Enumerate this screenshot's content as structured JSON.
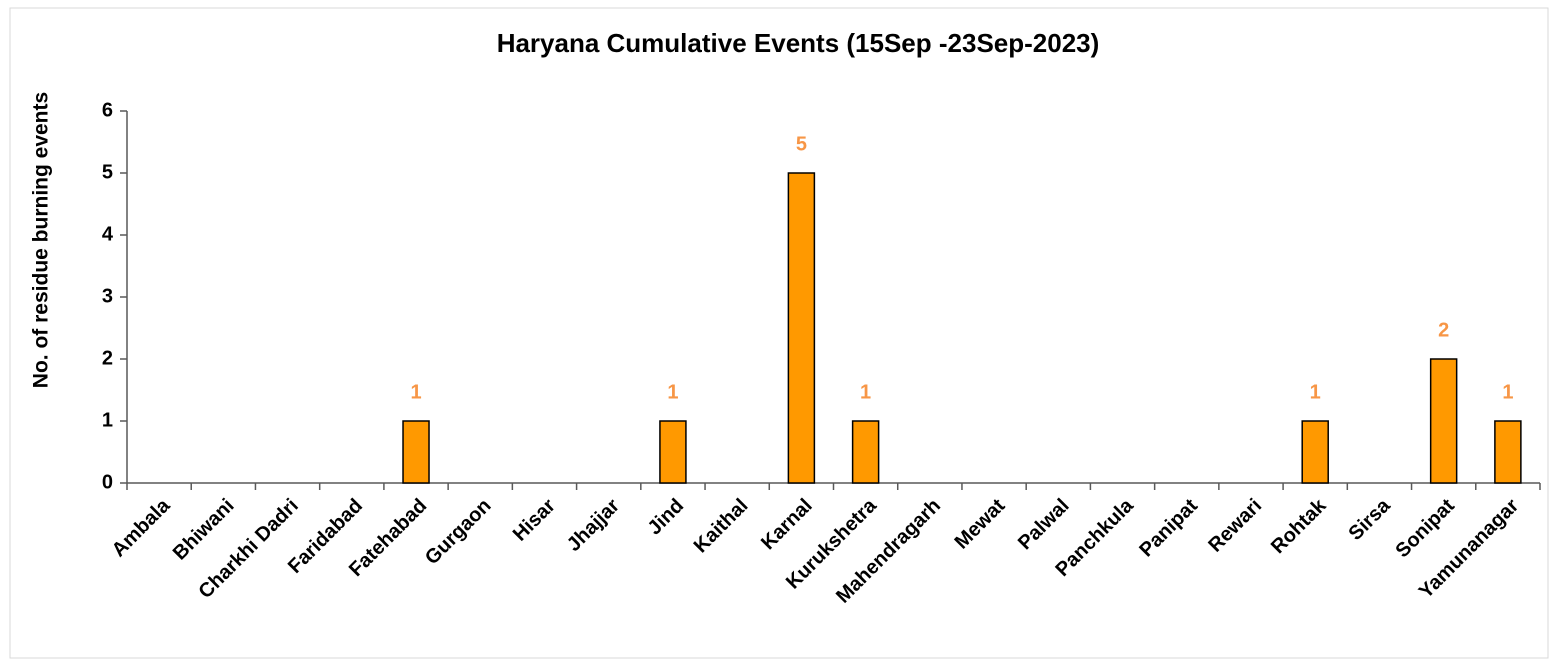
{
  "chart_data": {
    "type": "bar",
    "title": "Haryana Cumulative Events (15Sep -23Sep-2023)",
    "y_label": "No. of residue burning events",
    "categories": [
      "Ambala",
      "Bhiwani",
      "Charkhi Dadri",
      "Faridabad",
      "Fatehabad",
      "Gurgaon",
      "Hisar",
      "Jhajjar",
      "Jind",
      "Kaithal",
      "Karnal",
      "Kurukshetra",
      "Mahendragarh",
      "Mewat",
      "Palwal",
      "Panchkula",
      "Panipat",
      "Rewari",
      "Rohtak",
      "Sirsa",
      "Sonipat",
      "Yamunanagar"
    ],
    "values": [
      0,
      0,
      0,
      0,
      1,
      0,
      0,
      0,
      1,
      0,
      5,
      1,
      0,
      0,
      0,
      0,
      0,
      0,
      1,
      0,
      2,
      1
    ],
    "value_labels": [
      null,
      null,
      null,
      null,
      "1",
      null,
      null,
      null,
      "1",
      null,
      "5",
      "1",
      null,
      null,
      null,
      null,
      null,
      null,
      "1",
      null,
      "2",
      "1"
    ],
    "color": "#ff9900",
    "label_color": "#f79646",
    "ylim": [
      0,
      6
    ],
    "yticks": [
      0,
      1,
      2,
      3,
      4,
      5,
      6
    ],
    "grid": false
  }
}
